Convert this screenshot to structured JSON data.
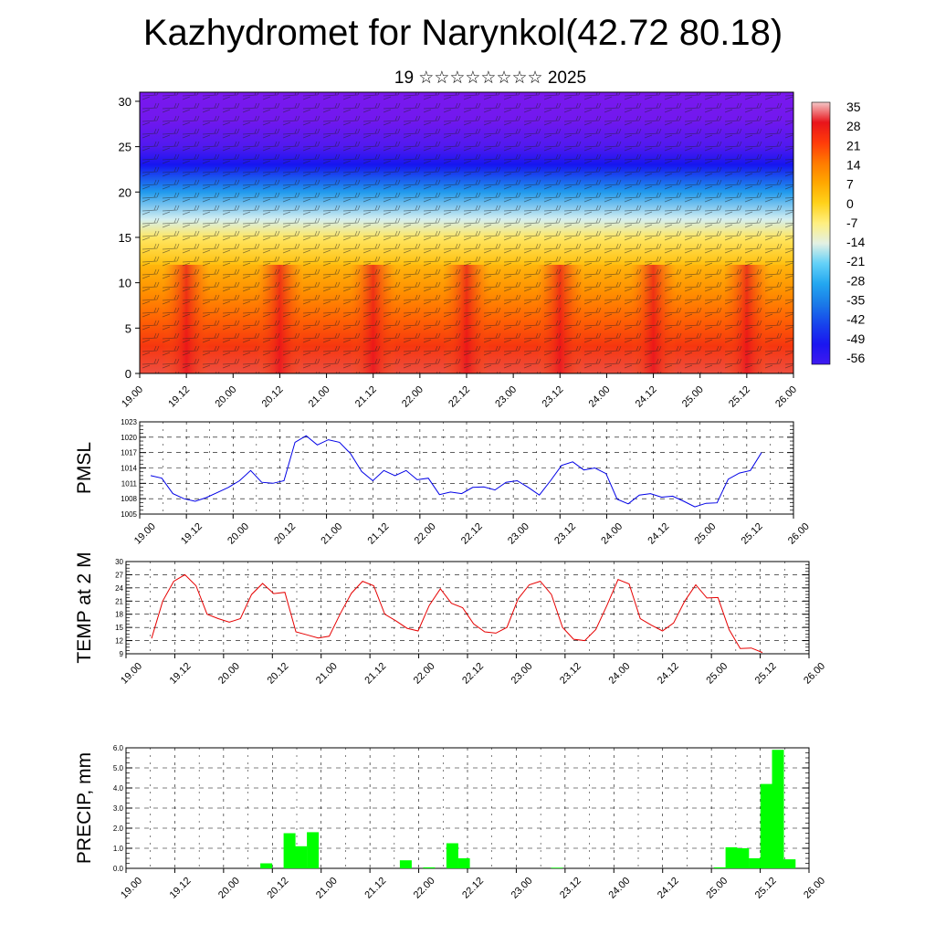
{
  "title": "Kazhydromet for Narynkol(42.72 80.18)",
  "subtitle": "19 ☆☆☆☆☆☆☆☆ 2025",
  "x_tick_labels": [
    "19.00",
    "19.12",
    "20.00",
    "20.12",
    "21.00",
    "21.12",
    "22.00",
    "22.12",
    "23.00",
    "23.12",
    "24.00",
    "24.12",
    "25.00",
    "25.12",
    "26.00"
  ],
  "chart_data": [
    {
      "type": "heatmap",
      "title": "",
      "xlabel": "",
      "ylabel": "",
      "x": [
        "19.00",
        "19.12",
        "20.00",
        "20.12",
        "21.00",
        "21.12",
        "22.00",
        "22.12",
        "23.00",
        "23.12",
        "24.00",
        "24.12",
        "25.00",
        "25.12",
        "26.00"
      ],
      "ylim": [
        0,
        31
      ],
      "y_ticks": [
        0,
        5,
        10,
        15,
        20,
        25,
        30
      ],
      "colorbar_labels": [
        "35",
        "28",
        "21",
        "14",
        "7",
        "0",
        "-7",
        "-14",
        "-21",
        "-28",
        "-35",
        "-42",
        "-49",
        "-56"
      ],
      "colorbar_values": [
        35,
        28,
        21,
        14,
        7,
        0,
        -7,
        -14,
        -21,
        -28,
        -35,
        -42,
        -49,
        -56
      ],
      "palette_hot_to_cold": [
        "#f4c7c7",
        "#e8141b",
        "#ff5a00",
        "#ff9a00",
        "#ffd100",
        "#fff29a",
        "#bfe8ff",
        "#12b0ef",
        "#1a6fe8",
        "#1217f0",
        "#6c16f0"
      ],
      "warm_peaks_at": [
        "19.12",
        "20.12",
        "21.12",
        "22.12",
        "23.12",
        "24.12",
        "25.12"
      ],
      "profile_levels_km": [
        0,
        3,
        6,
        9,
        12,
        15,
        17,
        20,
        23,
        25,
        28,
        31
      ],
      "profile_temps": [
        30,
        24,
        17,
        10,
        3,
        -5,
        -15,
        -30,
        -48,
        -58,
        -62,
        -63
      ]
    },
    {
      "type": "line",
      "ylabel": "PMSL",
      "ylim": [
        1005,
        1023
      ],
      "y_ticks": [
        1005,
        1008,
        1011,
        1014,
        1017,
        1020,
        1023
      ],
      "series": [
        {
          "color": "#0000e6",
          "values": [
            1012.5,
            1012.0,
            1009.0,
            1008.0,
            1007.5,
            1008.2,
            1009.2,
            1010.2,
            1011.5,
            1013.5,
            1011.2,
            1011.0,
            1011.5,
            1019.0,
            1020.3,
            1018.5,
            1019.5,
            1019.0,
            1016.8,
            1013.3,
            1011.5,
            1013.5,
            1012.5,
            1013.5,
            1011.7,
            1012.0,
            1008.8,
            1009.3,
            1009.0,
            1010.2,
            1010.3,
            1009.7,
            1011.2,
            1011.5,
            1010.2,
            1008.7,
            1011.5,
            1014.5,
            1015.2,
            1013.6,
            1014.0,
            1012.9,
            1007.9,
            1007.0,
            1008.7,
            1009.0,
            1008.3,
            1008.5,
            1007.5,
            1006.4,
            1007.1,
            1007.2,
            1011.8,
            1013.0,
            1013.5,
            1017.0
          ]
        }
      ]
    },
    {
      "type": "line",
      "ylabel": "TEMP at 2 M",
      "ylim": [
        9,
        30
      ],
      "y_ticks": [
        9,
        12,
        15,
        18,
        21,
        24,
        27,
        30
      ],
      "series": [
        {
          "color": "#e60000",
          "values": [
            12.5,
            21,
            25.5,
            27,
            24.5,
            18,
            17,
            16.2,
            17,
            22.5,
            25,
            22.7,
            23,
            14,
            13.3,
            12.6,
            13,
            18.2,
            22.8,
            25.5,
            24.5,
            18,
            16.5,
            14.8,
            14.2,
            20,
            23.8,
            20.5,
            19.5,
            15.8,
            14,
            13.7,
            15,
            21.5,
            24.7,
            25.5,
            22.5,
            15,
            12.3,
            12,
            14.5,
            20,
            25.9,
            24.9,
            17,
            15.5,
            14.2,
            16,
            21,
            24.7,
            21.7,
            21.8,
            14.5,
            10.2,
            10.3,
            9.3
          ]
        }
      ]
    },
    {
      "type": "bar",
      "ylabel": "PRECIP, mm",
      "ylim": [
        0,
        6
      ],
      "y_ticks": [
        0,
        1,
        2,
        3,
        4,
        5,
        6
      ],
      "y_tick_labels": [
        "0.0",
        "1.0",
        "2.0",
        "3.0",
        "4.0",
        "5.0",
        "6.0"
      ],
      "bar_color": "#00ff00",
      "values": [
        0,
        0,
        0,
        0,
        0,
        0,
        0,
        0,
        0,
        0,
        0,
        0.25,
        0,
        1.75,
        1.1,
        1.8,
        0,
        0,
        0,
        0,
        0,
        0,
        0,
        0.4,
        0,
        0.05,
        0,
        1.25,
        0.5,
        0,
        0,
        0,
        0,
        0,
        0,
        0,
        0.03,
        0,
        0,
        0,
        0,
        0,
        0,
        0,
        0,
        0,
        0,
        0,
        0,
        0,
        0.05,
        1.05,
        1.0,
        0.5,
        4.2,
        5.9,
        0.45
      ]
    }
  ]
}
